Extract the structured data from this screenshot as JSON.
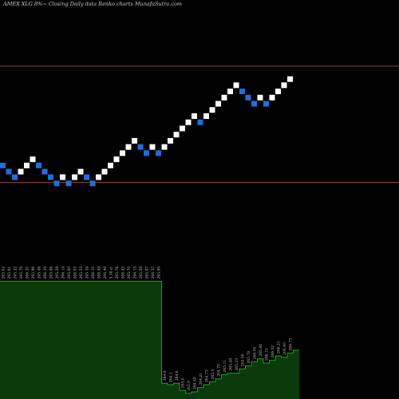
{
  "chart_data": {
    "type": "bar",
    "title": "AMEX  XLG  8%~  Closing Daily data  Renko  charts MunafaSutra.com",
    "colors": {
      "background": "#000000",
      "brick_up": "#ffffff",
      "brick_down": "#1e6fdc",
      "level_line": "#8b4513",
      "volume_fill": "#0a3a0a",
      "volume_line": "#1fa01f"
    },
    "levels": [
      {
        "name": "upper",
        "value": 290.8
      },
      {
        "name": "lower",
        "value": 274.6
      }
    ],
    "ylim": [
      262.2,
      298.9
    ],
    "bricks": [
      {
        "dir": "down",
        "value": 276.95
      },
      {
        "dir": "down",
        "value": 276.09
      },
      {
        "dir": "down",
        "value": 275.32
      },
      {
        "dir": "up",
        "value": 276.09
      },
      {
        "dir": "up",
        "value": 276.95
      },
      {
        "dir": "up",
        "value": 277.81
      },
      {
        "dir": "down",
        "value": 276.95
      },
      {
        "dir": "down",
        "value": 276.09
      },
      {
        "dir": "down",
        "value": 275.32
      },
      {
        "dir": "down",
        "value": 274.46
      },
      {
        "dir": "up",
        "value": 275.32
      },
      {
        "dir": "down",
        "value": 274.46
      },
      {
        "dir": "up",
        "value": 275.32
      },
      {
        "dir": "up",
        "value": 276.09
      },
      {
        "dir": "down",
        "value": 275.32
      },
      {
        "dir": "down",
        "value": 274.46
      },
      {
        "dir": "up",
        "value": 275.32
      },
      {
        "dir": "up",
        "value": 276.09
      },
      {
        "dir": "up",
        "value": 276.95
      },
      {
        "dir": "up",
        "value": 277.81
      },
      {
        "dir": "up",
        "value": 278.67
      },
      {
        "dir": "up",
        "value": 279.53
      },
      {
        "dir": "up",
        "value": 280.39
      },
      {
        "dir": "down",
        "value": 279.53
      },
      {
        "dir": "down",
        "value": 278.67
      },
      {
        "dir": "up",
        "value": 279.53
      },
      {
        "dir": "down",
        "value": 278.67
      },
      {
        "dir": "up",
        "value": 279.53
      },
      {
        "dir": "up",
        "value": 280.39
      },
      {
        "dir": "up",
        "value": 281.25
      },
      {
        "dir": "up",
        "value": 282.11
      },
      {
        "dir": "up",
        "value": 282.97
      },
      {
        "dir": "up",
        "value": 283.83
      },
      {
        "dir": "down",
        "value": 282.97
      },
      {
        "dir": "up",
        "value": 283.83
      },
      {
        "dir": "up",
        "value": 284.69
      },
      {
        "dir": "up",
        "value": 285.55
      },
      {
        "dir": "up",
        "value": 286.41
      },
      {
        "dir": "up",
        "value": 287.27
      },
      {
        "dir": "up",
        "value": 288.13
      },
      {
        "dir": "down",
        "value": 287.27
      },
      {
        "dir": "down",
        "value": 286.41
      },
      {
        "dir": "down",
        "value": 285.55
      },
      {
        "dir": "up",
        "value": 286.41
      },
      {
        "dir": "down",
        "value": 285.55
      },
      {
        "dir": "up",
        "value": 286.41
      },
      {
        "dir": "up",
        "value": 287.27
      },
      {
        "dir": "up",
        "value": 288.13
      },
      {
        "dir": "up",
        "value": 288.99
      }
    ],
    "volume_labels": [
      "265.62",
      "265.81",
      "265.32",
      "265.79",
      "266.20",
      "265.96",
      "265.48",
      "266.29",
      "265.86",
      "265.28",
      "266.14",
      "265.60",
      "266.05",
      "265.55",
      "265.34",
      "266.10",
      "266.49",
      "266.40",
      "5.36 d",
      "265.76",
      "266.45",
      "265.70",
      "266.15",
      "265.58",
      "265.87",
      "266.37",
      "265.80",
      "264.8",
      "264.1",
      "264.6",
      "265.0",
      "263.9",
      "264.40",
      "264.21",
      "264.73",
      "265.4",
      "264.70",
      "265.11",
      "265.48",
      "265.23",
      "265.56",
      "265.78",
      "266.00",
      "265.90",
      "266.15",
      "266.02",
      "266.21",
      "266.40",
      "266.73"
    ],
    "volume_levels": [
      0.82,
      0.82,
      0.82,
      0.82,
      0.82,
      0.82,
      0.82,
      0.82,
      0.82,
      0.82,
      0.82,
      0.82,
      0.82,
      0.82,
      0.82,
      0.82,
      0.82,
      0.82,
      0.82,
      0.82,
      0.82,
      0.82,
      0.82,
      0.82,
      0.82,
      0.82,
      0.82,
      0.11,
      0.1,
      0.11,
      0.06,
      0.04,
      0.05,
      0.08,
      0.1,
      0.12,
      0.14,
      0.17,
      0.18,
      0.18,
      0.21,
      0.23,
      0.26,
      0.28,
      0.25,
      0.27,
      0.3,
      0.29,
      0.32,
      0.34
    ]
  }
}
